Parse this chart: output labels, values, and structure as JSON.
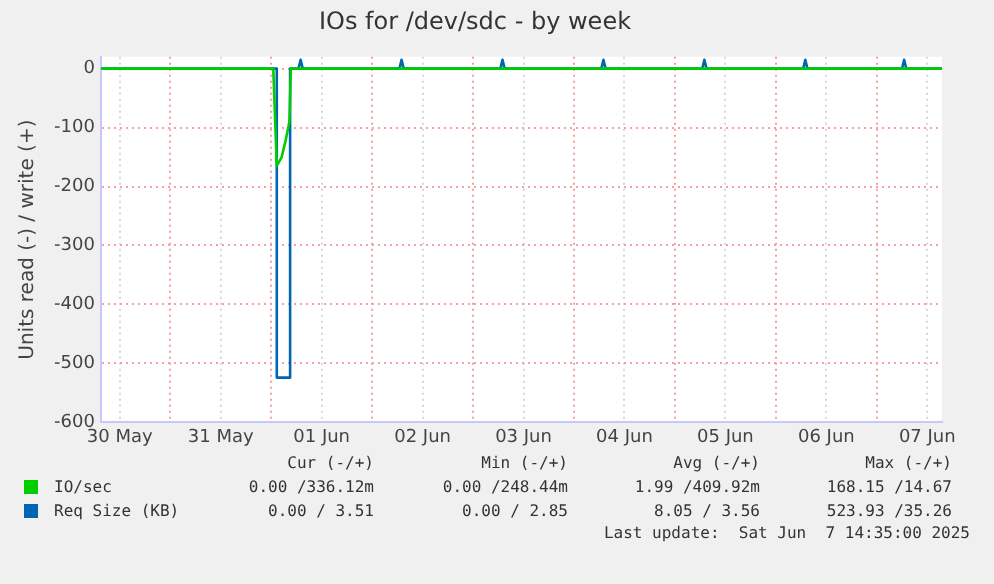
{
  "chart_data": {
    "type": "line",
    "title": "IOs for /dev/sdc - by week",
    "ylabel": "Units read (-) / write (+)",
    "xlim": [
      "2025-05-30T07:30",
      "2025-06-07T15:30"
    ],
    "xticks": [
      {
        "value": "2025-05-30T12:00",
        "label": "30 May"
      },
      {
        "value": "2025-05-31T00:00",
        "label": null
      },
      {
        "value": "2025-05-31T12:00",
        "label": "31 May"
      },
      {
        "value": "2025-06-01T00:00",
        "label": null
      },
      {
        "value": "2025-06-01T12:00",
        "label": "01 Jun"
      },
      {
        "value": "2025-06-02T00:00",
        "label": null
      },
      {
        "value": "2025-06-02T12:00",
        "label": "02 Jun"
      },
      {
        "value": "2025-06-03T00:00",
        "label": null
      },
      {
        "value": "2025-06-03T12:00",
        "label": "03 Jun"
      },
      {
        "value": "2025-06-04T00:00",
        "label": null
      },
      {
        "value": "2025-06-04T12:00",
        "label": "04 Jun"
      },
      {
        "value": "2025-06-05T00:00",
        "label": null
      },
      {
        "value": "2025-06-05T12:00",
        "label": "05 Jun"
      },
      {
        "value": "2025-06-06T00:00",
        "label": null
      },
      {
        "value": "2025-06-06T12:00",
        "label": "06 Jun"
      },
      {
        "value": "2025-06-07T00:00",
        "label": null
      },
      {
        "value": "2025-06-07T12:00",
        "label": "07 Jun"
      }
    ],
    "ylim": [
      -600,
      20
    ],
    "yticks": [
      -600,
      -500,
      -400,
      -300,
      -200,
      -100,
      0
    ],
    "grid": true,
    "legend": "bottom",
    "marker": "none",
    "series": [
      {
        "name": "IO/sec",
        "color": "#00cc00",
        "x": [
          "2025-05-30T07:30",
          "2025-06-01T00:30",
          "2025-06-01T01:20",
          "2025-06-01T02:30",
          "2025-06-01T03:30",
          "2025-06-01T04:20",
          "2025-06-01T04:40",
          "2025-06-07T15:30"
        ],
        "values": [
          0,
          0,
          -165,
          -150,
          -120,
          -90,
          0,
          0
        ]
      },
      {
        "name": "Req Size (KB)",
        "color": "#0066b3",
        "x": [
          "2025-05-30T07:30",
          "2025-06-01T01:20",
          "2025-06-01T01:20",
          "2025-06-01T04:30",
          "2025-06-01T04:30",
          "2025-06-01T06:30",
          "2025-06-01T07:00",
          "2025-06-01T07:30",
          "2025-06-02T06:30",
          "2025-06-02T07:00",
          "2025-06-02T07:30",
          "2025-06-03T06:30",
          "2025-06-03T07:00",
          "2025-06-03T07:30",
          "2025-06-04T06:30",
          "2025-06-04T07:00",
          "2025-06-04T07:30",
          "2025-06-05T06:30",
          "2025-06-05T07:00",
          "2025-06-05T07:30",
          "2025-06-06T06:30",
          "2025-06-06T07:00",
          "2025-06-06T07:30",
          "2025-06-07T06:00",
          "2025-06-07T06:30",
          "2025-06-07T07:00",
          "2025-06-07T15:30"
        ],
        "values": [
          0,
          0,
          -524,
          -524,
          0,
          0,
          15,
          0,
          0,
          15,
          0,
          0,
          15,
          0,
          0,
          15,
          0,
          0,
          15,
          0,
          0,
          15,
          0,
          0,
          15,
          0,
          0
        ]
      }
    ],
    "annotations": [
      "Cur (-/+)",
      "Min (-/+)",
      "Avg (-/+)",
      "Max (-/+)",
      "0.00 /336.12m",
      "0.00 /248.44m",
      "1.99 /409.92m",
      "168.15 /14.67",
      "0.00 / 3.51",
      "0.00 / 2.85",
      "8.05 / 3.56",
      "523.93 /35.26",
      "Last update:  Sat Jun  7 14:35:00 2025"
    ]
  }
}
